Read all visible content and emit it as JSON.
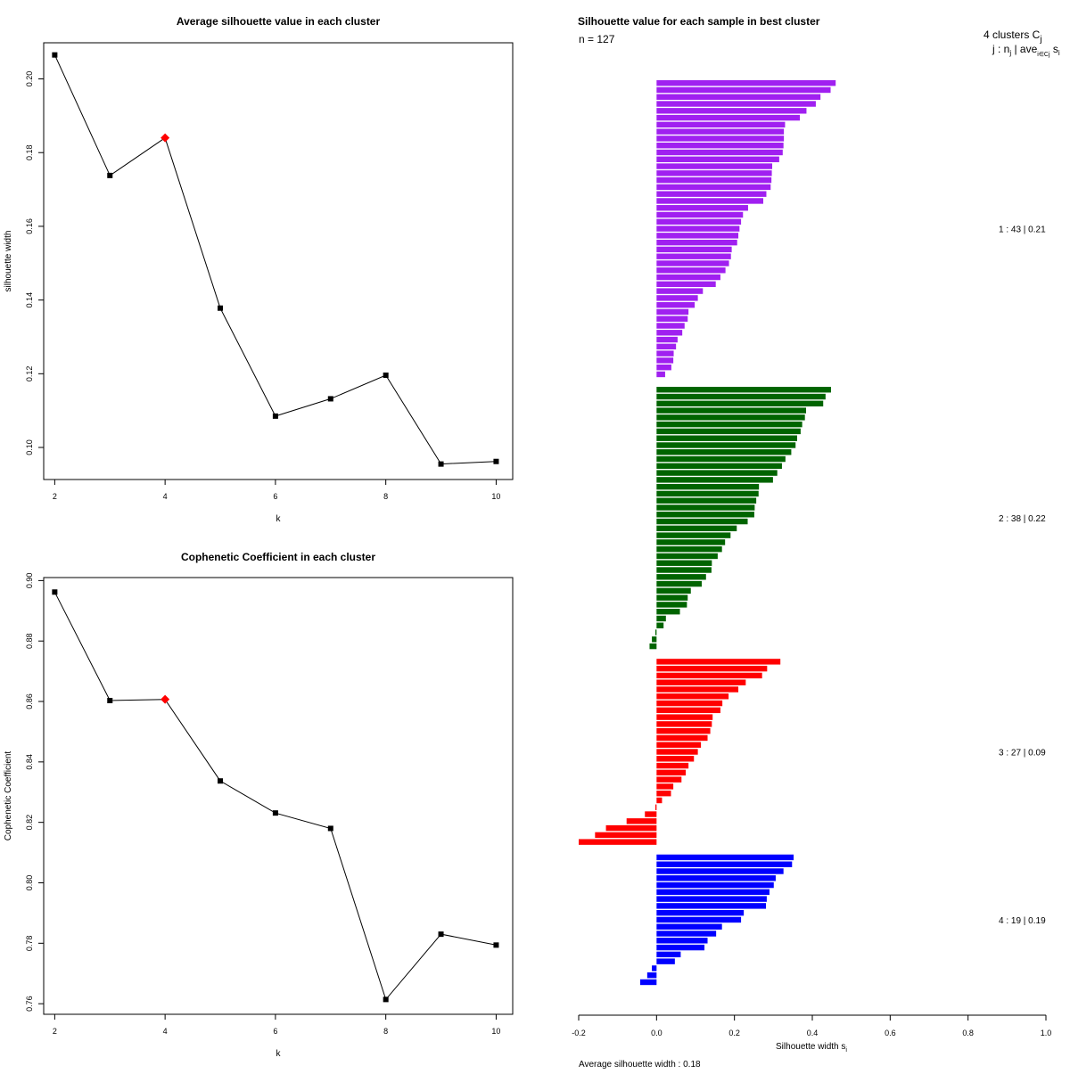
{
  "chart_data": [
    {
      "type": "line",
      "title": "Average silhouette value in each cluster",
      "xlabel": "k",
      "ylabel": "silhouette width",
      "x": [
        2,
        3,
        4,
        5,
        6,
        7,
        8,
        9,
        10
      ],
      "values": [
        0.2065,
        0.1738,
        0.184,
        0.1378,
        0.1085,
        0.1132,
        0.1196,
        0.0955,
        0.0962
      ],
      "highlight_x": 4,
      "xlim": [
        1.8,
        10.3
      ],
      "ylim": [
        0.0913,
        0.2098
      ],
      "xticks": [
        2,
        4,
        6,
        8,
        10
      ],
      "yticks": [
        0.1,
        0.12,
        0.14,
        0.16,
        0.18,
        0.2
      ],
      "yticklabels": [
        "0.10",
        "0.12",
        "0.14",
        "0.16",
        "0.18",
        "0.20"
      ]
    },
    {
      "type": "line",
      "title": "Cophenetic Coefficient in each cluster",
      "xlabel": "k",
      "ylabel": "Cophenetic Coefficient",
      "x": [
        2,
        3,
        4,
        5,
        6,
        7,
        8,
        9,
        10
      ],
      "values": [
        0.8962,
        0.8603,
        0.8607,
        0.8337,
        0.8231,
        0.818,
        0.7614,
        0.783,
        0.7794
      ],
      "highlight_x": 4,
      "xlim": [
        1.8,
        10.3
      ],
      "ylim": [
        0.7565,
        0.901
      ],
      "xticks": [
        2,
        4,
        6,
        8,
        10
      ],
      "yticks": [
        0.76,
        0.78,
        0.8,
        0.82,
        0.84,
        0.86,
        0.88,
        0.9
      ],
      "yticklabels": [
        "0.76",
        "0.78",
        "0.80",
        "0.82",
        "0.84",
        "0.86",
        "0.88",
        "0.90"
      ]
    },
    {
      "type": "bar",
      "orientation": "horizontal",
      "title": "Silhouette value for each sample in best cluster",
      "n_label": "n = 127",
      "xlabel_main": "Silhouette width s",
      "xlabel_sub": "i",
      "xlim": [
        -0.2,
        1.0
      ],
      "xticks": [
        -0.2,
        0.0,
        0.2,
        0.4,
        0.6,
        0.8,
        1.0
      ],
      "xticklabels": [
        "-0.2",
        "0.0",
        "0.2",
        "0.4",
        "0.6",
        "0.8",
        "1.0"
      ],
      "header_main": "4 clusters C",
      "header_main_sub": "j",
      "header_line2": "j : n",
      "header_line2_sub": "j",
      "header_line2_rest": " | ave",
      "header_line2_sub2": "i∈Cj",
      "header_line2_end": " s",
      "header_line2_end_sub": "i",
      "average_label": "Average silhouette width : 0.18",
      "clusters": [
        {
          "label": "1 :  43  |  0.21",
          "color": "#a020f0",
          "values": [
            0.46,
            0.447,
            0.421,
            0.409,
            0.385,
            0.368,
            0.33,
            0.327,
            0.327,
            0.326,
            0.324,
            0.315,
            0.297,
            0.296,
            0.295,
            0.293,
            0.282,
            0.274,
            0.235,
            0.222,
            0.217,
            0.213,
            0.21,
            0.207,
            0.193,
            0.191,
            0.186,
            0.177,
            0.164,
            0.152,
            0.119,
            0.106,
            0.098,
            0.082,
            0.08,
            0.072,
            0.066,
            0.054,
            0.05,
            0.044,
            0.043,
            0.038,
            0.022
          ]
        },
        {
          "label": "2 :  38  |  0.22",
          "color": "#006400",
          "values": [
            0.448,
            0.434,
            0.428,
            0.384,
            0.381,
            0.374,
            0.37,
            0.361,
            0.357,
            0.346,
            0.331,
            0.322,
            0.31,
            0.299,
            0.263,
            0.262,
            0.256,
            0.252,
            0.251,
            0.234,
            0.206,
            0.19,
            0.176,
            0.168,
            0.157,
            0.142,
            0.141,
            0.127,
            0.116,
            0.088,
            0.08,
            0.078,
            0.06,
            0.024,
            0.018,
            -0.003,
            -0.012,
            -0.018
          ]
        },
        {
          "label": "3 :  27  |  0.09",
          "color": "#ff0000",
          "values": [
            0.318,
            0.284,
            0.271,
            0.229,
            0.21,
            0.185,
            0.169,
            0.164,
            0.144,
            0.142,
            0.138,
            0.131,
            0.114,
            0.106,
            0.096,
            0.082,
            0.075,
            0.064,
            0.043,
            0.037,
            0.014,
            -0.003,
            -0.03,
            -0.077,
            -0.13,
            -0.158,
            -0.2
          ]
        },
        {
          "label": "4 :  19  |  0.19",
          "color": "#0000ff",
          "values": [
            0.352,
            0.348,
            0.326,
            0.306,
            0.301,
            0.29,
            0.283,
            0.281,
            0.224,
            0.217,
            0.168,
            0.153,
            0.131,
            0.123,
            0.062,
            0.047,
            -0.012,
            -0.024,
            -0.042
          ]
        }
      ]
    }
  ]
}
